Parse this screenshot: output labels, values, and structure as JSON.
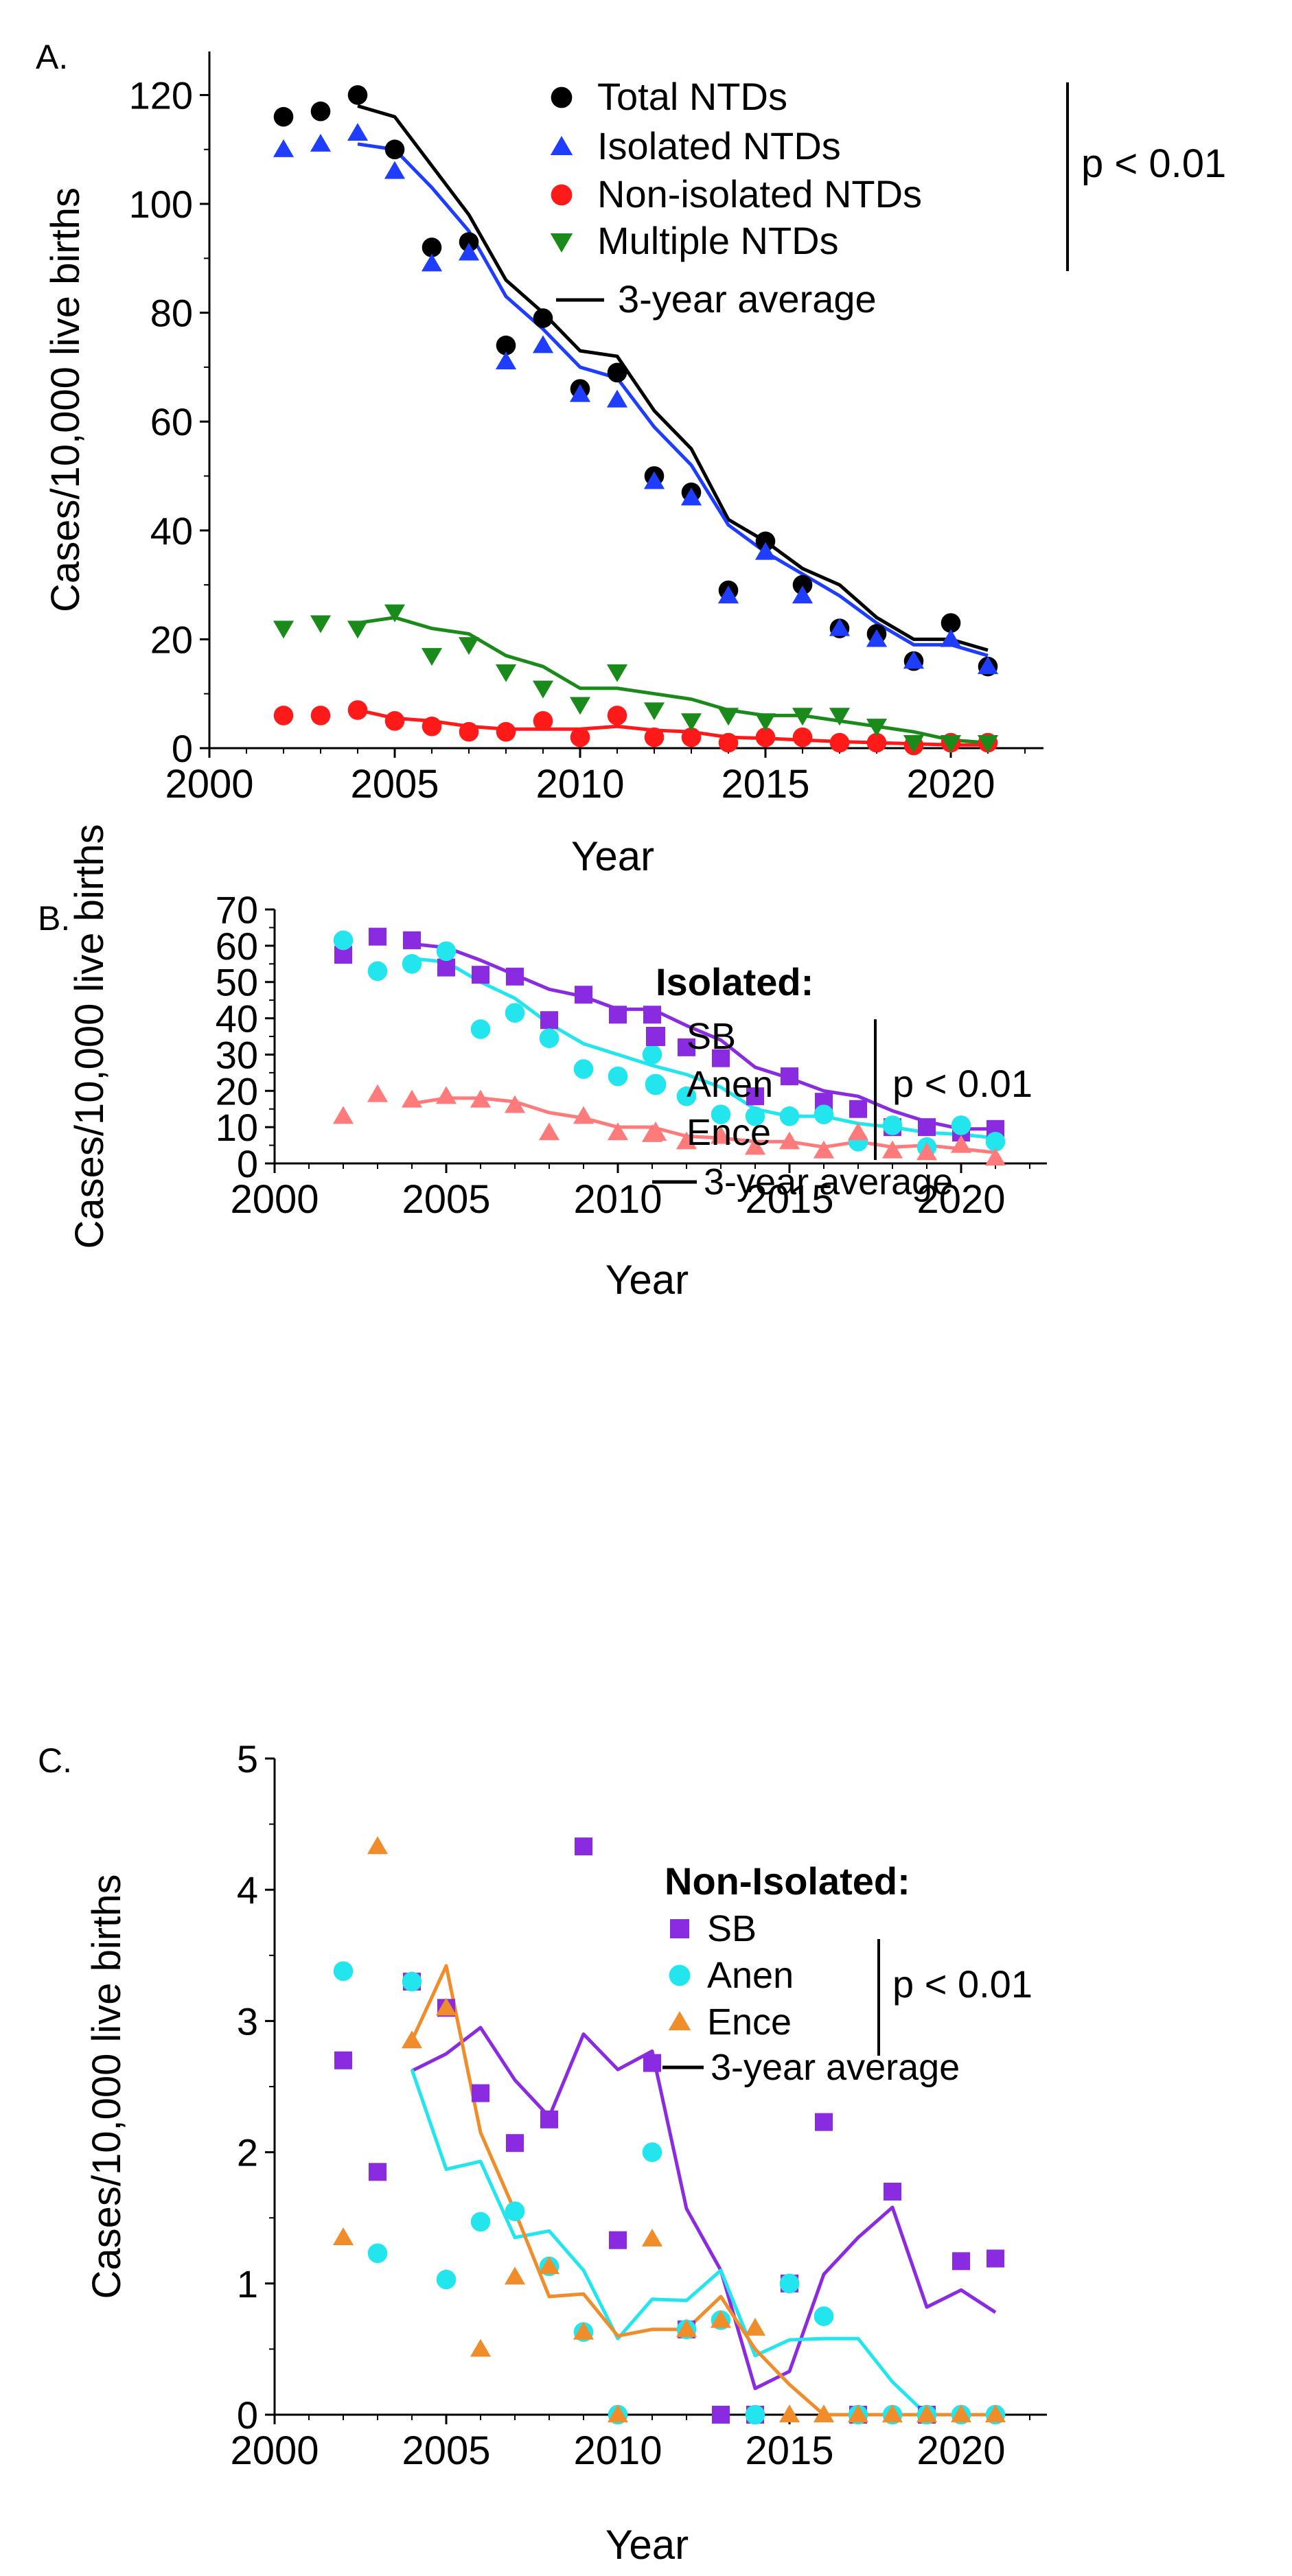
{
  "chart_data": [
    {
      "type": "scatter",
      "panel_label": "A.",
      "xlabel": "Year",
      "ylabel": "Cases/10,000 live births",
      "xlim": [
        2000,
        2022.5
      ],
      "ylim": [
        0,
        128
      ],
      "xticks": [
        2000,
        2005,
        2010,
        2015,
        2020
      ],
      "yticks": [
        0,
        20,
        40,
        60,
        80,
        100,
        120
      ],
      "legend_title": "",
      "p_value": "p < 0.01",
      "average_label": "3-year average",
      "series": [
        {
          "name": "Total NTDs",
          "marker": "circle",
          "color": "#000000",
          "x": [
            2002,
            2003,
            2004,
            2005,
            2006,
            2007,
            2008,
            2009,
            2010,
            2011,
            2012,
            2013,
            2014,
            2015,
            2016,
            2017,
            2018,
            2019,
            2020,
            2021
          ],
          "values": [
            116,
            117,
            120,
            110,
            92,
            93,
            74,
            79,
            66,
            69,
            50,
            47,
            29,
            38,
            30,
            22,
            21,
            16,
            23,
            15
          ],
          "avg_x": [
            2004,
            2005,
            2006,
            2007,
            2008,
            2009,
            2010,
            2011,
            2012,
            2013,
            2014,
            2015,
            2016,
            2017,
            2018,
            2019,
            2020,
            2021
          ],
          "avg": [
            118,
            116,
            107,
            98,
            86,
            80,
            73,
            72,
            62,
            55,
            42,
            38,
            33,
            30,
            24,
            20,
            20,
            18
          ]
        },
        {
          "name": "Isolated NTDs",
          "marker": "triangle-up",
          "color": "#1f3dff",
          "x": [
            2002,
            2003,
            2004,
            2005,
            2006,
            2007,
            2008,
            2009,
            2010,
            2011,
            2012,
            2013,
            2014,
            2015,
            2016,
            2017,
            2018,
            2019,
            2020,
            2021
          ],
          "values": [
            110,
            111,
            113,
            106,
            89,
            91,
            71,
            74,
            65,
            64,
            49,
            46,
            28,
            36,
            28,
            22,
            20,
            16,
            20,
            15
          ],
          "avg_x": [
            2004,
            2005,
            2006,
            2007,
            2008,
            2009,
            2010,
            2011,
            2012,
            2013,
            2014,
            2015,
            2016,
            2017,
            2018,
            2019,
            2020,
            2021
          ],
          "avg": [
            111,
            110,
            103,
            95,
            83,
            77,
            70,
            68,
            59,
            52,
            41,
            36,
            32,
            28,
            23,
            19,
            19,
            17
          ]
        },
        {
          "name": "Non-isolated NTDs",
          "marker": "circle",
          "color": "#ff1a1a",
          "x": [
            2002,
            2003,
            2004,
            2005,
            2006,
            2007,
            2008,
            2009,
            2010,
            2011,
            2012,
            2013,
            2014,
            2015,
            2016,
            2017,
            2018,
            2019,
            2020,
            2021
          ],
          "values": [
            6,
            6,
            7,
            5,
            4,
            3,
            3,
            5,
            2,
            6,
            2,
            2,
            1,
            2,
            2,
            1,
            1,
            0.5,
            1,
            1
          ],
          "avg_x": [
            2004,
            2005,
            2006,
            2007,
            2008,
            2009,
            2010,
            2011,
            2012,
            2013,
            2014,
            2015,
            2016,
            2017,
            2018,
            2019,
            2020,
            2021
          ],
          "avg": [
            7,
            5.5,
            5,
            4,
            3.5,
            3.5,
            3.5,
            4,
            3.3,
            3,
            2,
            1.8,
            1.5,
            1.2,
            1,
            0.8,
            0.6,
            0.6
          ]
        },
        {
          "name": "Multiple NTDs",
          "marker": "triangle-down",
          "color": "#1a8a1a",
          "x": [
            2002,
            2003,
            2004,
            2005,
            2006,
            2007,
            2008,
            2009,
            2010,
            2011,
            2012,
            2013,
            2014,
            2015,
            2016,
            2017,
            2018,
            2019,
            2020,
            2021
          ],
          "values": [
            22,
            23,
            22,
            25,
            17,
            19,
            14,
            11,
            8,
            14,
            7,
            5,
            6,
            5,
            6,
            6,
            4,
            1,
            1,
            1
          ],
          "avg_x": [
            2004,
            2005,
            2006,
            2007,
            2008,
            2009,
            2010,
            2011,
            2012,
            2013,
            2014,
            2015,
            2016,
            2017,
            2018,
            2019,
            2020,
            2021
          ],
          "avg": [
            23,
            24,
            22,
            21,
            17,
            15,
            11,
            11,
            10,
            9,
            7,
            6,
            6,
            5,
            4,
            3,
            1.5,
            1
          ]
        }
      ]
    },
    {
      "type": "scatter",
      "panel_label": "B.",
      "xlabel": "Year",
      "ylabel": "Cases/10,000 live births",
      "xlim": [
        2000,
        2022.5
      ],
      "ylim": [
        0,
        70
      ],
      "xticks": [
        2000,
        2005,
        2010,
        2015,
        2020
      ],
      "yticks": [
        0,
        10,
        20,
        30,
        40,
        50,
        60,
        70
      ],
      "legend_title": "Isolated:",
      "p_value": "p < 0.01",
      "average_label": "3-year average",
      "series": [
        {
          "name": "SB",
          "marker": "square",
          "color": "#8a2be2",
          "x": [
            2002,
            2003,
            2004,
            2005,
            2006,
            2007,
            2008,
            2009,
            2010,
            2011,
            2012,
            2013,
            2014,
            2015,
            2016,
            2017,
            2018,
            2019,
            2020,
            2021
          ],
          "values": [
            57.5,
            62.5,
            61.5,
            54,
            52,
            51.5,
            39.5,
            46.5,
            41,
            41,
            32,
            29,
            18.5,
            24,
            17,
            15,
            10,
            10,
            8.5,
            9.5
          ],
          "avg_x": [
            2004,
            2005,
            2006,
            2007,
            2008,
            2009,
            2010,
            2011,
            2012,
            2013,
            2014,
            2015,
            2016,
            2017,
            2018,
            2019,
            2020,
            2021
          ],
          "avg": [
            60.5,
            59.5,
            56,
            52,
            48,
            46,
            42.5,
            42.5,
            38,
            34,
            26.5,
            23.5,
            20,
            18.5,
            14.5,
            11.5,
            9.5,
            9.5
          ]
        },
        {
          "name": "Anen",
          "marker": "circle",
          "color": "#22e5ee",
          "x": [
            2002,
            2003,
            2004,
            2005,
            2006,
            2007,
            2008,
            2009,
            2010,
            2011,
            2012,
            2013,
            2014,
            2015,
            2016,
            2017,
            2018,
            2019,
            2020,
            2021
          ],
          "values": [
            61.5,
            53,
            55,
            58.5,
            37,
            41.5,
            34.5,
            26,
            24,
            30,
            18.5,
            13.5,
            13,
            13,
            13.5,
            6,
            10.5,
            4.5,
            10.5,
            6
          ],
          "avg_x": [
            2004,
            2005,
            2006,
            2007,
            2008,
            2009,
            2010,
            2011,
            2012,
            2013,
            2014,
            2015,
            2016,
            2017,
            2018,
            2019,
            2020,
            2021
          ],
          "avg": [
            56.5,
            55.5,
            50,
            45.5,
            38.5,
            33,
            30,
            27,
            24.5,
            21,
            15,
            13,
            13,
            11,
            10,
            8.5,
            8,
            7
          ]
        },
        {
          "name": "Ence",
          "marker": "triangle-up",
          "color": "#ff7b7b",
          "x": [
            2002,
            2003,
            2004,
            2005,
            2006,
            2007,
            2008,
            2009,
            2010,
            2011,
            2012,
            2013,
            2014,
            2015,
            2016,
            2017,
            2018,
            2019,
            2020,
            2021
          ],
          "values": [
            13,
            19,
            17.5,
            18.5,
            17.5,
            16,
            8.5,
            13,
            8.5,
            8,
            6,
            7.5,
            4.5,
            6,
            3.5,
            8.5,
            3.5,
            3,
            5,
            1.5
          ],
          "avg_x": [
            2004,
            2005,
            2006,
            2007,
            2008,
            2009,
            2010,
            2011,
            2012,
            2013,
            2014,
            2015,
            2016,
            2017,
            2018,
            2019,
            2020,
            2021
          ],
          "avg": [
            16.5,
            18,
            18,
            17,
            14,
            12.5,
            10,
            10,
            7.5,
            7,
            6,
            6,
            4.5,
            6,
            4.5,
            5,
            4,
            3
          ]
        }
      ]
    },
    {
      "type": "scatter",
      "panel_label": "C.",
      "xlabel": "Year",
      "ylabel": "Cases/10,000 live births",
      "xlim": [
        2000,
        2022.5
      ],
      "ylim": [
        0,
        5
      ],
      "xticks": [
        2000,
        2005,
        2010,
        2015,
        2020
      ],
      "yticks": [
        0,
        1,
        2,
        3,
        4,
        5
      ],
      "legend_title": "Non-Isolated:",
      "p_value": "p < 0.01",
      "average_label": "3-year average",
      "series": [
        {
          "name": "SB",
          "marker": "square",
          "color": "#8a2be2",
          "x": [
            2002,
            2003,
            2004,
            2005,
            2006,
            2007,
            2008,
            2009,
            2010,
            2011,
            2012,
            2013,
            2014,
            2015,
            2016,
            2017,
            2018,
            2019,
            2020,
            2021
          ],
          "values": [
            2.7,
            1.85,
            3.3,
            3.1,
            2.45,
            2.07,
            2.25,
            4.33,
            1.33,
            2.68,
            0.65,
            0,
            0,
            1.0,
            2.23,
            0,
            1.7,
            0,
            1.17,
            1.19
          ],
          "avg_x": [
            2004,
            2005,
            2006,
            2007,
            2008,
            2009,
            2010,
            2011,
            2012,
            2013,
            2014,
            2015,
            2016,
            2017,
            2018,
            2019,
            2020,
            2021
          ],
          "avg": [
            2.62,
            2.75,
            2.95,
            2.55,
            2.27,
            2.9,
            2.63,
            2.77,
            1.57,
            1.1,
            0.2,
            0.33,
            1.07,
            1.35,
            1.58,
            0.82,
            0.95,
            0.78
          ]
        },
        {
          "name": "Anen",
          "marker": "circle",
          "color": "#22e5ee",
          "x": [
            2002,
            2003,
            2004,
            2005,
            2006,
            2007,
            2008,
            2009,
            2010,
            2011,
            2012,
            2013,
            2014,
            2015,
            2016,
            2017,
            2018,
            2019,
            2020,
            2021
          ],
          "values": [
            3.38,
            1.23,
            3.3,
            1.03,
            1.47,
            1.55,
            1.13,
            0.63,
            0,
            2.0,
            0.65,
            0.72,
            0,
            1.0,
            0.75,
            0,
            0,
            0,
            0,
            0
          ],
          "avg_x": [
            2004,
            2005,
            2006,
            2007,
            2008,
            2009,
            2010,
            2011,
            2012,
            2013,
            2014,
            2015,
            2016,
            2017,
            2018,
            2019,
            2020,
            2021
          ],
          "avg": [
            2.63,
            1.87,
            1.93,
            1.35,
            1.4,
            1.1,
            0.58,
            0.88,
            0.87,
            1.1,
            0.45,
            0.57,
            0.58,
            0.58,
            0.25,
            0,
            0,
            0
          ]
        },
        {
          "name": "Ence",
          "marker": "triangle-up",
          "color": "#f08c2a",
          "x": [
            2002,
            2003,
            2004,
            2005,
            2006,
            2007,
            2008,
            2009,
            2010,
            2011,
            2012,
            2013,
            2014,
            2015,
            2016,
            2017,
            2018,
            2019,
            2020,
            2021
          ],
          "values": [
            1.35,
            4.33,
            2.85,
            3.1,
            0.5,
            1.05,
            1.13,
            0.63,
            0,
            1.34,
            0.65,
            0.72,
            0.66,
            0,
            0,
            0,
            0,
            0,
            0,
            0
          ],
          "avg_x": [
            2004,
            2005,
            2006,
            2007,
            2008,
            2009,
            2010,
            2011,
            2012,
            2013,
            2014,
            2015,
            2016,
            2017,
            2018,
            2019,
            2020,
            2021
          ],
          "avg": [
            2.85,
            3.42,
            2.15,
            1.55,
            0.9,
            0.92,
            0.6,
            0.65,
            0.65,
            0.9,
            0.5,
            0.23,
            0,
            0,
            0,
            0,
            0,
            0
          ]
        }
      ]
    }
  ]
}
